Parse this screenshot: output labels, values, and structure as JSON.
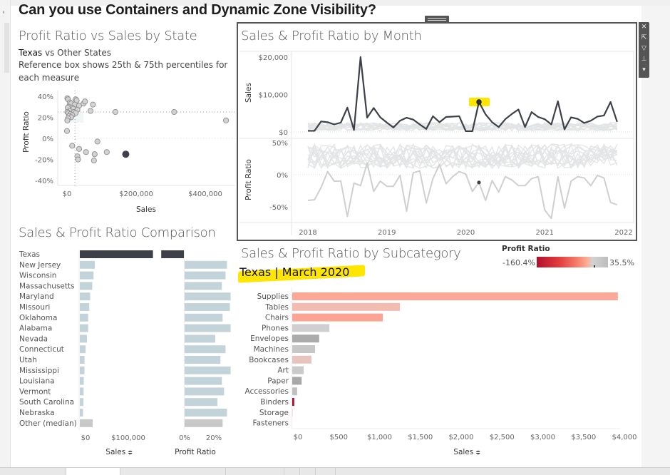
{
  "dashboard": {
    "title": "Can you use Containers and Dynamic Zone Visibility?"
  },
  "scatter": {
    "title": "Profit Ratio vs Sales by State",
    "subtitle_bold": "Texas",
    "subtitle_rest": " vs Other States",
    "note": "Reference box shows 25th & 75th percentiles for each measure",
    "xlabel": "Sales",
    "ylabel": "Profit Ratio",
    "x_ticks": [
      "$0",
      "$200,000",
      "$400,000"
    ],
    "y_ticks": [
      "40%",
      "20%",
      "0%",
      "-20%",
      "-40%"
    ],
    "ref_lines": {
      "x_p25": 0,
      "x_p75": 23000,
      "y_p25": 0,
      "y_p75": 25
    },
    "highlight": {
      "name": "Texas",
      "sales": 170000,
      "profit_ratio": -15
    },
    "points": [
      [
        1000,
        38
      ],
      [
        3000,
        37
      ],
      [
        8000,
        34
      ],
      [
        25000,
        37
      ],
      [
        28000,
        36
      ],
      [
        12000,
        33
      ],
      [
        22000,
        32
      ],
      [
        35000,
        31
      ],
      [
        5000,
        30
      ],
      [
        15000,
        29
      ],
      [
        2000,
        29
      ],
      [
        18000,
        28
      ],
      [
        30000,
        27
      ],
      [
        8000,
        26
      ],
      [
        1000,
        25
      ],
      [
        20000,
        25
      ],
      [
        25000,
        24
      ],
      [
        4000,
        24
      ],
      [
        10000,
        23
      ],
      [
        15000,
        22
      ],
      [
        6000,
        21
      ],
      [
        12000,
        20
      ],
      [
        3000,
        19
      ],
      [
        1000,
        17
      ],
      [
        0,
        7
      ],
      [
        48000,
        33
      ],
      [
        52000,
        35
      ],
      [
        75000,
        32
      ],
      [
        68000,
        26
      ],
      [
        140000,
        25
      ],
      [
        310000,
        25
      ],
      [
        460000,
        17
      ],
      [
        15000,
        -7
      ],
      [
        35000,
        -10
      ],
      [
        88000,
        -3
      ],
      [
        55000,
        -13
      ],
      [
        80000,
        -15
      ],
      [
        115000,
        -13
      ],
      [
        30000,
        -17
      ],
      [
        32000,
        -20
      ],
      [
        78000,
        -21
      ]
    ]
  },
  "monthly": {
    "title": "Sales & Profit Ratio by Month",
    "sales_label": "Sales",
    "pr_label": "Profit Ratio",
    "sales_ticks": [
      "$20,000",
      "$10,000",
      "$0"
    ],
    "pr_ticks": [
      "50%",
      "0%",
      "-50%"
    ],
    "year_ticks": [
      "2018",
      "2019",
      "2020",
      "2021",
      "2022"
    ],
    "selected": {
      "month": "March 2020",
      "sales": 8000,
      "profit_ratio": -12
    },
    "texas_sales": [
      300,
      300,
      2800,
      2600,
      2000,
      2500,
      6500,
      500,
      20000,
      3800,
      6400,
      3900,
      2500,
      1200,
      3000,
      3800,
      3300,
      2000,
      800,
      4200,
      2600,
      4000,
      4100,
      4200,
      200,
      200,
      8000,
      4700,
      2600,
      1300,
      3400,
      4800,
      6000,
      1300,
      5300,
      4000,
      3400,
      2000,
      8200,
      700,
      3900,
      3500,
      2400,
      3000,
      4100,
      4400,
      8000,
      2700
    ],
    "texas_profit_ratio": [
      -40,
      -39,
      -20,
      5,
      -10,
      -10,
      -65,
      -13,
      -17,
      18,
      -26,
      -10,
      -18,
      -18,
      -1,
      -57,
      3,
      6,
      -44,
      -6,
      16,
      -14,
      -3,
      5,
      1,
      -26,
      -12,
      -40,
      -9,
      -27,
      -3,
      -8,
      -17,
      -17,
      -6,
      -3,
      -55,
      -68,
      -3,
      -52,
      -10,
      -3,
      -5,
      -17,
      -1,
      -5,
      -43,
      -47
    ]
  },
  "comparison": {
    "title": "Sales & Profit Ratio Comparison",
    "sales_label": "Sales",
    "pr_label": "Profit Ratio",
    "sales_ticks": [
      "$0",
      "$100,000"
    ],
    "pr_ticks": [
      "0%",
      "20%"
    ],
    "rows": [
      {
        "state": "Texas",
        "sales": 171000,
        "profit_ratio": -16,
        "type": "highlight"
      },
      {
        "state": "New Jersey",
        "sales": 35000,
        "profit_ratio": 29,
        "type": "state"
      },
      {
        "state": "Wisconsin",
        "sales": 32000,
        "profit_ratio": 28,
        "type": "state"
      },
      {
        "state": "Massachusetts",
        "sales": 29000,
        "profit_ratio": 25.5,
        "type": "state"
      },
      {
        "state": "Maryland",
        "sales": 24000,
        "profit_ratio": 31.5,
        "type": "state"
      },
      {
        "state": "Missouri",
        "sales": 22000,
        "profit_ratio": 31,
        "type": "state"
      },
      {
        "state": "Oklahoma",
        "sales": 19500,
        "profit_ratio": 26,
        "type": "state"
      },
      {
        "state": "Alabama",
        "sales": 19500,
        "profit_ratio": 31.5,
        "type": "state"
      },
      {
        "state": "Nevada",
        "sales": 16500,
        "profit_ratio": 21,
        "type": "state"
      },
      {
        "state": "Connecticut",
        "sales": 13500,
        "profit_ratio": 28,
        "type": "state"
      },
      {
        "state": "Utah",
        "sales": 11000,
        "profit_ratio": 24.5,
        "type": "state"
      },
      {
        "state": "Mississippi",
        "sales": 10800,
        "profit_ratio": 31.5,
        "type": "state"
      },
      {
        "state": "Louisiana",
        "sales": 9200,
        "profit_ratio": 25.5,
        "type": "state"
      },
      {
        "state": "Vermont",
        "sales": 8900,
        "profit_ratio": 27,
        "type": "state"
      },
      {
        "state": "South Carolina",
        "sales": 8500,
        "profit_ratio": 22.5,
        "type": "state"
      },
      {
        "state": "Nebraska",
        "sales": 7400,
        "profit_ratio": 29,
        "type": "state"
      },
      {
        "state": "Other (median)",
        "sales": 30000,
        "profit_ratio": 26,
        "type": "median"
      }
    ]
  },
  "subcategory": {
    "title": "Sales & Profit Ratio by Subcategory",
    "highlight_title": "Texas | March 2020",
    "xlabel": "Sales",
    "x_ticks": [
      "$0",
      "$500",
      "$1,000",
      "$1,500",
      "$2,000",
      "$2,500",
      "$3,000",
      "$3,500",
      "$4,000"
    ],
    "legend": {
      "title": "Profit Ratio",
      "min": "-160.4%",
      "max": "35.5%"
    },
    "rows": [
      {
        "name": "Supplies",
        "sales": 3990,
        "color": "#fba898"
      },
      {
        "name": "Tables",
        "sales": 1320,
        "color": "#f4bcb0"
      },
      {
        "name": "Chairs",
        "sales": 1110,
        "color": "#fba494"
      },
      {
        "name": "Phones",
        "sales": 455,
        "color": "#cfcfcf"
      },
      {
        "name": "Envelopes",
        "sales": 330,
        "color": "#ababab"
      },
      {
        "name": "Machines",
        "sales": 280,
        "color": "#c6c6c6"
      },
      {
        "name": "Bookcases",
        "sales": 235,
        "color": "#e8c4bd"
      },
      {
        "name": "Art",
        "sales": 140,
        "color": "#cacaca"
      },
      {
        "name": "Paper",
        "sales": 115,
        "color": "#a8a8a8"
      },
      {
        "name": "Accessories",
        "sales": 60,
        "color": "#c0c0c0"
      },
      {
        "name": "Binders",
        "sales": 25,
        "color": "#b3112d"
      },
      {
        "name": "Storage",
        "sales": 5,
        "color": "#f3c7bd"
      },
      {
        "name": "Fasteners",
        "sales": 0,
        "color": "#d0d0d0"
      }
    ]
  },
  "colors": {
    "highlight": "#3d4049",
    "state_bar": "#c3d3da",
    "median_bar": "#c8c8c8",
    "context_line": "#e3e4e5",
    "texas_pr_line": "#cfcfcf",
    "selection": "#ffe600"
  },
  "zone_tools": [
    "close",
    "open-in-new",
    "filter",
    "pin",
    "more"
  ]
}
